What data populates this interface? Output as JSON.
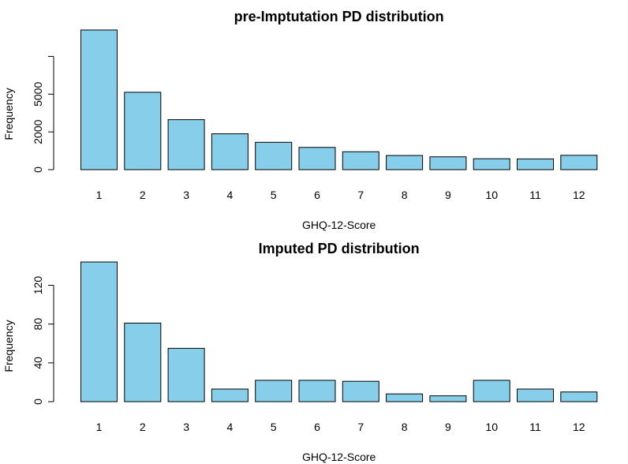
{
  "chart_data": [
    {
      "type": "bar",
      "title": "pre-Imptutation PD distribution",
      "xlabel": "GHQ-12-Score",
      "ylabel": "Frequency",
      "categories": [
        "1",
        "2",
        "3",
        "4",
        "5",
        "6",
        "7",
        "8",
        "9",
        "10",
        "11",
        "12"
      ],
      "values": [
        7400,
        4100,
        2650,
        1900,
        1450,
        1180,
        950,
        750,
        680,
        580,
        570,
        760
      ],
      "ylim": [
        0,
        7400
      ],
      "yticks": [
        0,
        2000,
        4000,
        6000
      ],
      "yticklabels": [
        "0",
        "2000",
        "5000"
      ],
      "yticklabel_values": [
        0,
        2000,
        5000
      ],
      "bar_color": "#87CEEB",
      "grid": false
    },
    {
      "type": "bar",
      "title": "Imputed PD distribution",
      "xlabel": "GHQ-12-Score",
      "ylabel": "Frequency",
      "categories": [
        "1",
        "2",
        "3",
        "4",
        "5",
        "6",
        "7",
        "8",
        "9",
        "10",
        "11",
        "12"
      ],
      "values": [
        144,
        81,
        55,
        13,
        22,
        22,
        21,
        8,
        6,
        22,
        13,
        10
      ],
      "ylim": [
        0,
        144
      ],
      "yticks": [
        0,
        40,
        80,
        120
      ],
      "yticklabels": [
        "0",
        "40",
        "80",
        "120"
      ],
      "yticklabel_values": [
        0,
        40,
        80,
        120
      ],
      "bar_color": "#87CEEB",
      "grid": false
    }
  ]
}
